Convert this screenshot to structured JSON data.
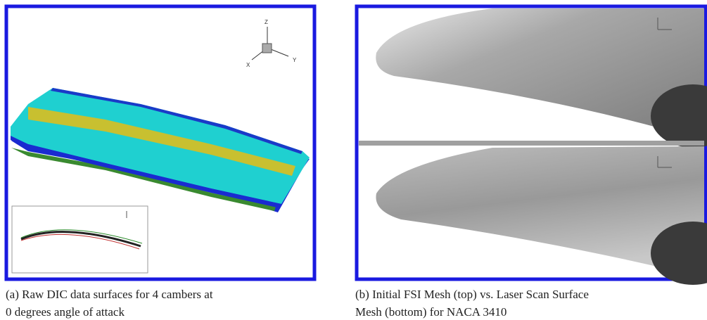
{
  "panel_a": {
    "triad": {
      "z": "Z",
      "x": "X",
      "y": "Y"
    },
    "caption": [
      "(a) Raw DIC data surfaces for 4 cambers at",
      "0 degrees angle of attack"
    ]
  },
  "panel_b": {
    "caption": [
      "(b) Initial FSI Mesh (top) vs. Laser Scan Surface",
      "Mesh (bottom) for NACA 3410"
    ]
  }
}
